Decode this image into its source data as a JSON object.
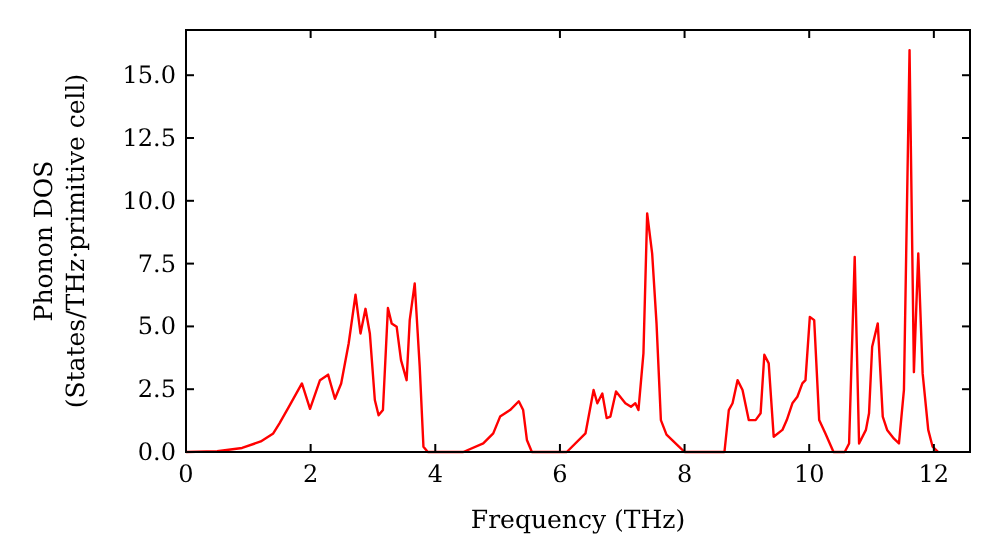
{
  "chart_data": {
    "type": "line",
    "xlabel": "Frequency (THz)",
    "ylabel": "Phonon DOS\n(States/THz·primitive cell)",
    "x": [
      0,
      0.5,
      0.9,
      1.2,
      1.4,
      1.5,
      1.65,
      1.86,
      1.99,
      2.15,
      2.28,
      2.39,
      2.49,
      2.61,
      2.72,
      2.8,
      2.88,
      2.95,
      3.03,
      3.09,
      3.16,
      3.24,
      3.3,
      3.38,
      3.45,
      3.54,
      3.59,
      3.67,
      3.75,
      3.81,
      3.88,
      4.45,
      4.77,
      4.93,
      5.04,
      5.2,
      5.34,
      5.41,
      5.47,
      5.55,
      6.11,
      6.41,
      6.54,
      6.6,
      6.68,
      6.75,
      6.81,
      6.9,
      7.05,
      7.14,
      7.21,
      7.26,
      7.34,
      7.4,
      7.48,
      7.55,
      7.62,
      7.71,
      7.91,
      8.0,
      8.64,
      8.71,
      8.77,
      8.85,
      8.93,
      9.03,
      9.14,
      9.22,
      9.28,
      9.35,
      9.43,
      9.57,
      9.64,
      9.73,
      9.81,
      9.89,
      9.94,
      10.01,
      10.08,
      10.16,
      10.26,
      10.39,
      10.57,
      10.64,
      10.73,
      10.8,
      10.91,
      10.96,
      11.01,
      11.1,
      11.18,
      11.25,
      11.36,
      11.44,
      11.52,
      11.61,
      11.68,
      11.75,
      11.82,
      11.91,
      11.98,
      12.07
    ],
    "series": [
      {
        "color": "#ff0000",
        "values": [
          0,
          0.03,
          0.16,
          0.42,
          0.74,
          1.14,
          1.8,
          2.73,
          1.72,
          2.86,
          3.08,
          2.12,
          2.73,
          4.32,
          6.26,
          4.72,
          5.7,
          4.72,
          2.07,
          1.46,
          1.67,
          5.73,
          5.12,
          4.99,
          3.66,
          2.86,
          5.25,
          6.71,
          3.4,
          0.21,
          0,
          0,
          0.34,
          0.74,
          1.41,
          1.67,
          2.02,
          1.67,
          0.48,
          0,
          0,
          0.74,
          2.47,
          1.94,
          2.33,
          1.35,
          1.41,
          2.41,
          1.94,
          1.8,
          1.94,
          1.67,
          3.93,
          9.5,
          7.9,
          5.12,
          1.27,
          0.69,
          0.21,
          0,
          0,
          1.67,
          1.94,
          2.86,
          2.47,
          1.27,
          1.27,
          1.54,
          3.87,
          3.53,
          0.61,
          0.88,
          1.27,
          1.94,
          2.2,
          2.73,
          2.86,
          5.38,
          5.25,
          1.27,
          0.74,
          0,
          0,
          0.34,
          7.77,
          0.34,
          0.88,
          1.54,
          4.19,
          5.12,
          1.41,
          0.88,
          0.53,
          0.34,
          2.47,
          16.0,
          3.18,
          7.9,
          3.13,
          0.88,
          0.21,
          0
        ]
      }
    ],
    "xlim": [
      0,
      12.58
    ],
    "ylim": [
      0,
      16.8
    ],
    "xticks": [
      0,
      2,
      4,
      6,
      8,
      10,
      12
    ],
    "yticks": [
      {
        "value": 0,
        "label": "0.0"
      },
      {
        "value": 2.5,
        "label": "2.5"
      },
      {
        "value": 5,
        "label": "5.0"
      },
      {
        "value": 7.5,
        "label": "7.5"
      },
      {
        "value": 10,
        "label": "10.0"
      },
      {
        "value": 12.5,
        "label": "12.5"
      },
      {
        "value": 15,
        "label": "15.0"
      }
    ],
    "grid": false,
    "marker": "none",
    "line_style": "solid"
  }
}
